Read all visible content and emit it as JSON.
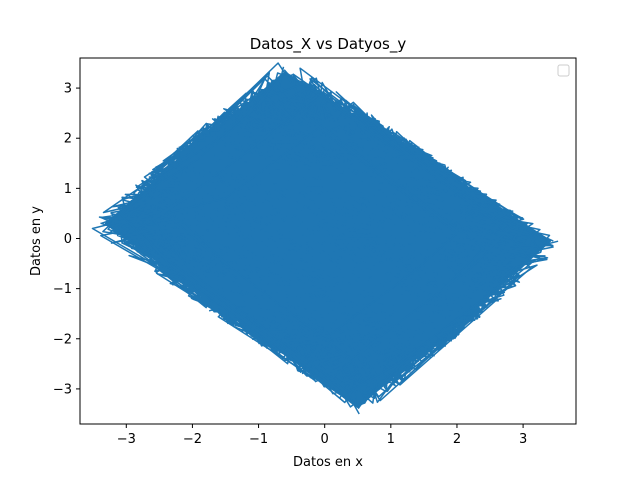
{
  "chart_data": {
    "type": "line",
    "title": "Datos_X vs Datyos_y",
    "xlabel": "Datos en x",
    "ylabel": "Datos en y",
    "xlim": [
      -3.7,
      3.8
    ],
    "ylim": [
      -3.7,
      3.6
    ],
    "xticks": [
      -3,
      -2,
      -1,
      0,
      1,
      2,
      3
    ],
    "yticks": [
      -3,
      -2,
      -1,
      0,
      1,
      2,
      3
    ],
    "xtick_labels": [
      "−3",
      "−2",
      "−1",
      "0",
      "1",
      "2",
      "3"
    ],
    "ytick_labels": [
      "−3",
      "−2",
      "−1",
      "0",
      "1",
      "2",
      "3"
    ],
    "legend": {
      "placement": "top-right",
      "entries": []
    },
    "grid": false,
    "series": [
      {
        "color": "#1f77b4",
        "extent": {
          "top": [
            -0.6,
            3.3
          ],
          "left": [
            -3.3,
            0.3
          ],
          "bottom": [
            0.5,
            -3.35
          ],
          "right": [
            3.4,
            -0.05
          ]
        },
        "points": [
          [
            -3.3,
            0.3
          ],
          [
            -2.6,
            1.0
          ],
          [
            -1.9,
            1.6
          ],
          [
            -1.2,
            2.4
          ],
          [
            -0.6,
            3.3
          ],
          [
            0.1,
            2.7
          ],
          [
            0.8,
            2.0
          ],
          [
            1.5,
            1.4
          ],
          [
            2.2,
            0.7
          ],
          [
            3.4,
            -0.05
          ],
          [
            2.8,
            -0.8
          ],
          [
            2.1,
            -1.5
          ],
          [
            1.4,
            -2.2
          ],
          [
            0.5,
            -3.35
          ],
          [
            -0.2,
            -2.6
          ],
          [
            -0.9,
            -2.0
          ],
          [
            -1.6,
            -1.3
          ],
          [
            -2.3,
            -0.6
          ],
          [
            -2.8,
            0.2
          ],
          [
            -2.1,
            0.8
          ],
          [
            -1.4,
            1.5
          ],
          [
            -0.7,
            2.2
          ],
          [
            0.0,
            2.9
          ],
          [
            0.7,
            2.3
          ],
          [
            1.4,
            1.6
          ],
          [
            2.1,
            0.9
          ],
          [
            2.8,
            0.2
          ],
          [
            2.2,
            -0.6
          ],
          [
            1.5,
            -1.3
          ],
          [
            0.8,
            -2.0
          ],
          [
            0.1,
            -2.8
          ],
          [
            -0.6,
            -2.1
          ],
          [
            -1.3,
            -1.4
          ],
          [
            -2.0,
            -0.7
          ],
          [
            -2.6,
            0.4
          ],
          [
            -1.8,
            1.1
          ],
          [
            -1.1,
            1.8
          ],
          [
            -0.4,
            2.6
          ],
          [
            0.3,
            1.9
          ],
          [
            1.0,
            1.2
          ],
          [
            1.7,
            0.5
          ],
          [
            2.4,
            -0.2
          ],
          [
            1.8,
            -1.0
          ],
          [
            1.1,
            -1.7
          ],
          [
            0.4,
            -2.4
          ],
          [
            -0.3,
            -1.7
          ],
          [
            -1.0,
            -1.0
          ],
          [
            -1.7,
            -0.3
          ],
          [
            -2.4,
            0.5
          ],
          [
            -1.5,
            0.8
          ],
          [
            -0.8,
            1.5
          ],
          [
            -0.1,
            2.2
          ],
          [
            0.6,
            1.5
          ],
          [
            1.3,
            0.8
          ],
          [
            2.0,
            0.1
          ],
          [
            1.4,
            -0.6
          ],
          [
            0.7,
            -1.3
          ],
          [
            0.0,
            -2.0
          ],
          [
            -0.7,
            -1.3
          ],
          [
            -1.4,
            -0.6
          ],
          [
            -2.1,
            0.3
          ],
          [
            -3.0,
            0.6
          ],
          [
            -2.5,
            1.2
          ],
          [
            -1.6,
            2.0
          ],
          [
            -0.9,
            2.8
          ],
          [
            -0.3,
            3.1
          ],
          [
            0.4,
            2.5
          ],
          [
            1.1,
            1.8
          ],
          [
            1.8,
            1.1
          ],
          [
            2.6,
            0.3
          ],
          [
            3.1,
            -0.4
          ],
          [
            2.5,
            -1.1
          ],
          [
            1.8,
            -1.8
          ],
          [
            1.1,
            -2.5
          ],
          [
            0.3,
            -3.1
          ],
          [
            -0.4,
            -2.4
          ],
          [
            -1.1,
            -1.7
          ],
          [
            -1.8,
            -1.0
          ],
          [
            -2.5,
            -0.3
          ],
          [
            -3.1,
            0.5
          ]
        ]
      }
    ]
  }
}
